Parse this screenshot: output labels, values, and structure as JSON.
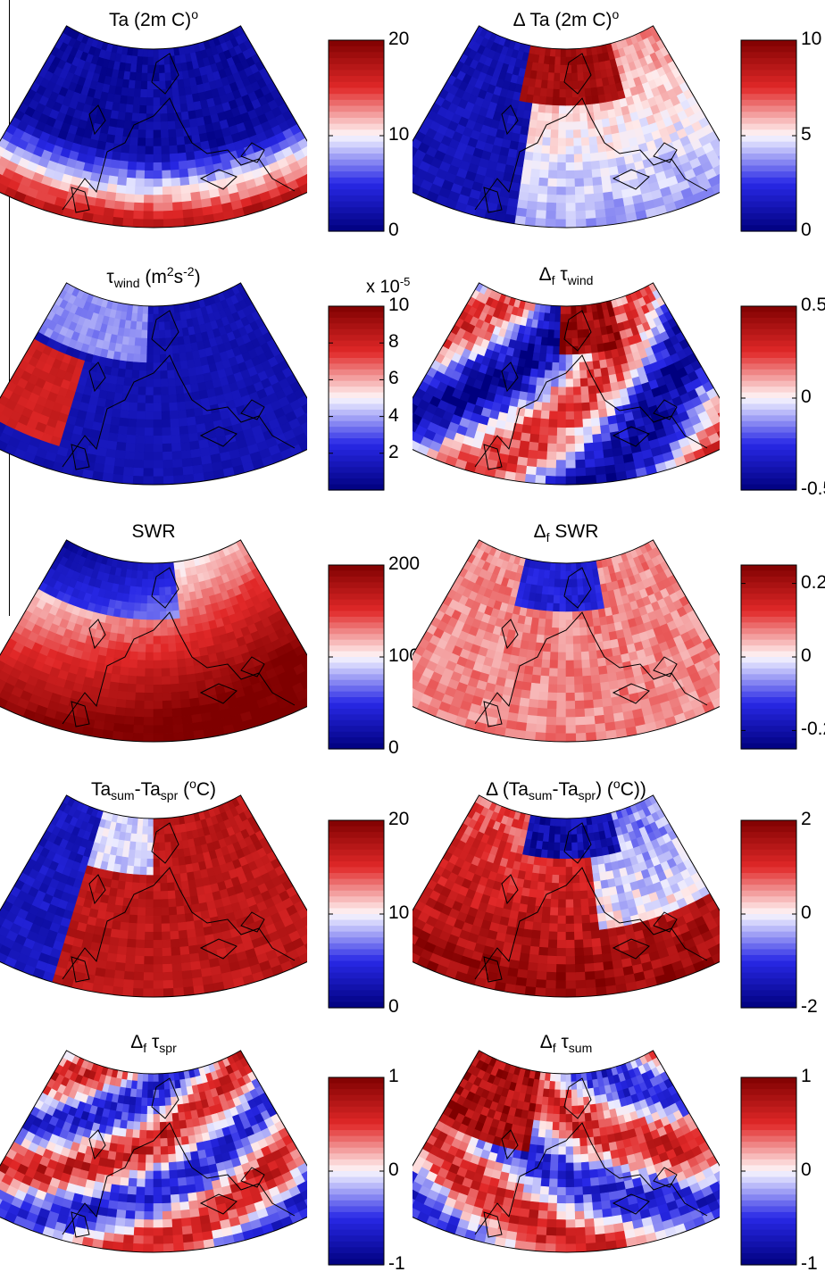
{
  "colors": {
    "dark_blue": "#00007f",
    "blue": "#2020e0",
    "white": "#f4f4ff",
    "red": "#e02020",
    "dark_red": "#7f0000",
    "coast": "#000000"
  },
  "chart_data": [
    {
      "type": "heatmap",
      "panel_id": "ta",
      "title": {
        "base": "Ta (2m ",
        "sup": "o",
        "tail": "C)"
      },
      "colorbar": {
        "ticks": [
          "0",
          "10",
          "20"
        ],
        "range": [
          0,
          20
        ]
      },
      "pattern": "warm_south_cold_north"
    },
    {
      "type": "heatmap",
      "panel_id": "delta-ta",
      "title": {
        "base": "Δ Ta (2m ",
        "sup": "o",
        "tail": "C)"
      },
      "colorbar": {
        "ticks": [
          "0",
          "5",
          "10"
        ],
        "range": [
          0,
          10
        ]
      },
      "pattern": "warm_arctic"
    },
    {
      "type": "heatmap",
      "panel_id": "tau-wind",
      "title": {
        "base": "τ",
        "sub": "wind",
        "tail": " (m",
        "sup": "2",
        "tail2": "s",
        "sup2": "-2",
        "tail3": ")"
      },
      "colorbar": {
        "ticks": [
          "2",
          "4",
          "6",
          "8",
          "10"
        ],
        "range": [
          0,
          10
        ],
        "scale_note": "x 10",
        "scale_exp": "-5"
      },
      "pattern": "atlantic_hotspot"
    },
    {
      "type": "heatmap",
      "panel_id": "delta-tau-wind",
      "title": {
        "base": "Δ",
        "sub": "f",
        "mid": " τ",
        "sub2": "wind"
      },
      "colorbar": {
        "ticks": [
          "-0.5",
          "0",
          "0.5"
        ],
        "range": [
          -0.5,
          0.5
        ]
      },
      "pattern": "mixed_north_red"
    },
    {
      "type": "heatmap",
      "panel_id": "swr",
      "title": {
        "base": "SWR"
      },
      "colorbar": {
        "ticks": [
          "0",
          "100",
          "200"
        ],
        "range": [
          0,
          200
        ]
      },
      "pattern": "southeast_high"
    },
    {
      "type": "heatmap",
      "panel_id": "delta-swr",
      "title": {
        "base": "Δ",
        "sub": "f",
        "mid": " SWR"
      },
      "colorbar": {
        "ticks": [
          "-0.2",
          "0",
          "0.2"
        ],
        "range": [
          -0.25,
          0.25
        ]
      },
      "pattern": "pale_red_blue_north"
    },
    {
      "type": "heatmap",
      "panel_id": "ta-sum-spr",
      "title": {
        "base": "Ta",
        "sub": "sum",
        "mid": "-Ta",
        "sub2": "spr",
        "tail": " (",
        "sup": "o",
        "tail2": "C)"
      },
      "colorbar": {
        "ticks": [
          "0",
          "10",
          "20"
        ],
        "range": [
          0,
          20
        ]
      },
      "pattern": "continental_red_west_blue"
    },
    {
      "type": "heatmap",
      "panel_id": "delta-ta-sum-spr",
      "title": {
        "base": "Δ (Ta",
        "sub": "sum",
        "mid": "-Ta",
        "sub2": "spr",
        "tail": ") (",
        "sup": "o",
        "tail2": "C))"
      },
      "colorbar": {
        "ticks": [
          "-2",
          "0",
          "2"
        ],
        "range": [
          -2,
          2
        ]
      },
      "pattern": "red_south_blue_arctic"
    },
    {
      "type": "heatmap",
      "panel_id": "delta-tau-spr",
      "title": {
        "base": "Δ",
        "sub": "f",
        "mid": " τ",
        "sub2": "spr"
      },
      "colorbar": {
        "ticks": [
          "-1",
          "0",
          "1"
        ],
        "range": [
          -1,
          1
        ]
      },
      "pattern": "mixed_pastel"
    },
    {
      "type": "heatmap",
      "panel_id": "delta-tau-sum",
      "title": {
        "base": "Δ",
        "sub": "f",
        "mid": " τ",
        "sub2": "sum"
      },
      "colorbar": {
        "ticks": [
          "-1",
          "0",
          "1"
        ],
        "range": [
          -1,
          1
        ]
      },
      "pattern": "mixed_red_nw"
    }
  ]
}
